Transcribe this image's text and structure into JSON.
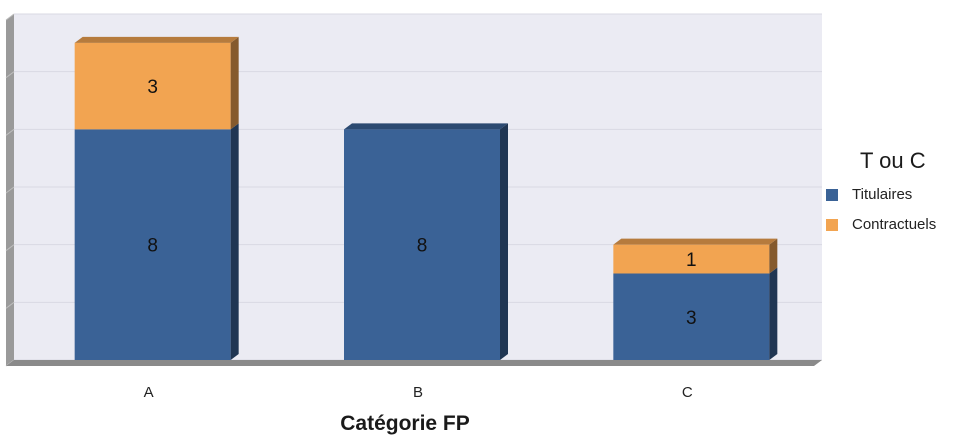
{
  "chart_data": {
    "type": "bar",
    "stacked": true,
    "categories": [
      "A",
      "B",
      "C"
    ],
    "series": [
      {
        "name": "Titulaires",
        "values": [
          8,
          8,
          3
        ],
        "color": "#3A6296"
      },
      {
        "name": "Contractuels",
        "values": [
          3,
          0,
          1
        ],
        "color": "#F2A451"
      }
    ],
    "xlabel": "Catégorie FP",
    "ylabel": "",
    "ylim": [
      0,
      12
    ],
    "grid": true,
    "legend_title": "T ou C",
    "legend_position": "right",
    "data_labels": true
  }
}
